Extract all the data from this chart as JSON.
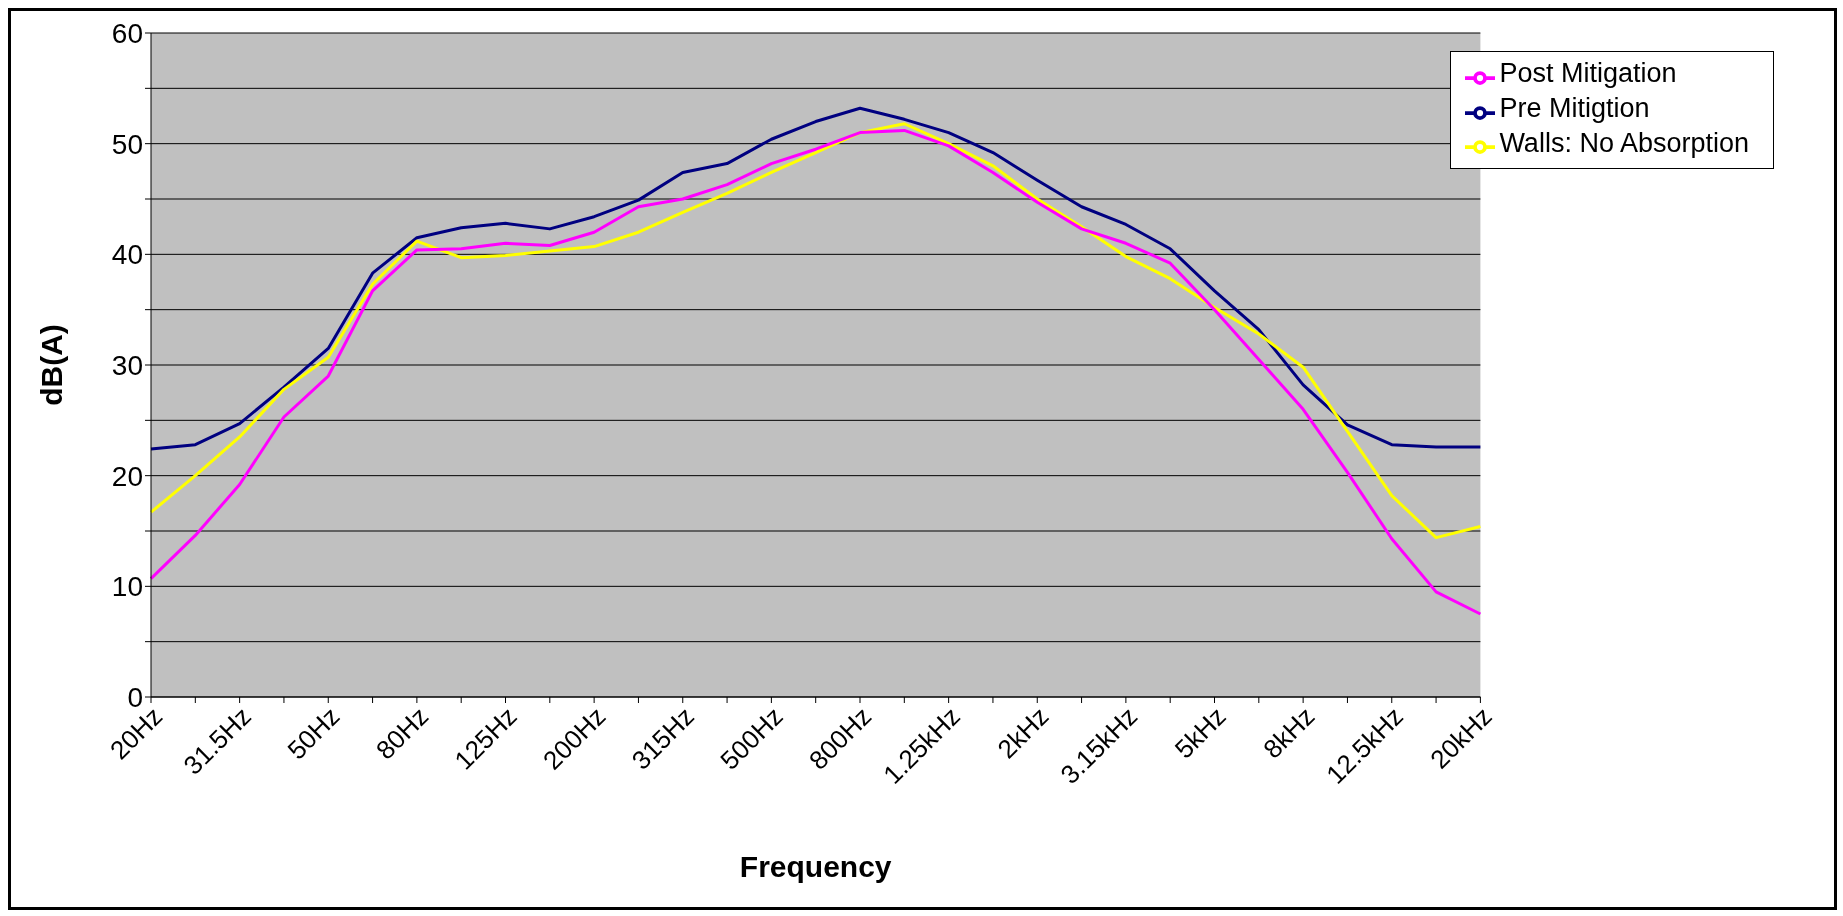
{
  "chart_data": {
    "type": "line",
    "xlabel": "Frequency",
    "ylabel": "dB(A)",
    "categories": [
      "20Hz",
      null,
      "31.5Hz",
      null,
      "50Hz",
      null,
      "80Hz",
      null,
      "125Hz",
      null,
      "200Hz",
      null,
      "315Hz",
      null,
      "500Hz",
      null,
      "800Hz",
      null,
      "1.25kHz",
      null,
      "2kHz",
      null,
      "3.15kHz",
      null,
      "5kHz",
      null,
      "8kHz",
      null,
      "12.5kHz",
      null,
      "20kHz"
    ],
    "series": [
      {
        "name": "Pre Mitigtion",
        "color": "#000080",
        "values": [
          22.4,
          22.8,
          24.7,
          28.0,
          31.5,
          38.3,
          41.5,
          42.4,
          42.8,
          42.3,
          43.4,
          44.9,
          47.4,
          48.2,
          50.4,
          52.0,
          53.2,
          52.2,
          51.0,
          49.2,
          46.7,
          44.3,
          42.7,
          40.5,
          36.7,
          33.2,
          28.2,
          24.6,
          22.8,
          22.6,
          22.6
        ]
      },
      {
        "name": "Walls: No Absorption",
        "color": "#ffff00",
        "values": [
          16.7,
          20.0,
          23.5,
          27.8,
          30.7,
          37.3,
          41.2,
          39.7,
          39.9,
          40.3,
          40.7,
          42.0,
          43.8,
          45.5,
          47.4,
          49.2,
          51.0,
          51.8,
          50.0,
          48.0,
          45.0,
          42.5,
          39.8,
          37.8,
          35.2,
          32.8,
          29.8,
          24.0,
          18.2,
          14.4,
          15.4
        ]
      },
      {
        "name": "Post Mitigation",
        "color": "#ff00ff",
        "values": [
          10.7,
          14.6,
          19.2,
          25.3,
          29.0,
          36.7,
          40.4,
          40.5,
          41.0,
          40.8,
          42.0,
          44.3,
          45.0,
          46.3,
          48.2,
          49.5,
          51.0,
          51.2,
          49.8,
          47.4,
          44.7,
          42.3,
          41.0,
          39.2,
          35.0,
          30.5,
          26.0,
          20.3,
          14.3,
          9.5,
          7.5
        ]
      }
    ],
    "ylim": [
      0,
      60
    ],
    "yticks": [
      0,
      {
        "value": 5,
        "label": null
      },
      10,
      {
        "value": 15,
        "label": null
      },
      20,
      {
        "value": 25,
        "label": null
      },
      30,
      {
        "value": 35,
        "label": null
      },
      40,
      {
        "value": 45,
        "label": null
      },
      50,
      {
        "value": 55,
        "label": null
      },
      60
    ],
    "grid": "y",
    "legend": "top right",
    "marker": "none",
    "line_style": "solid"
  }
}
